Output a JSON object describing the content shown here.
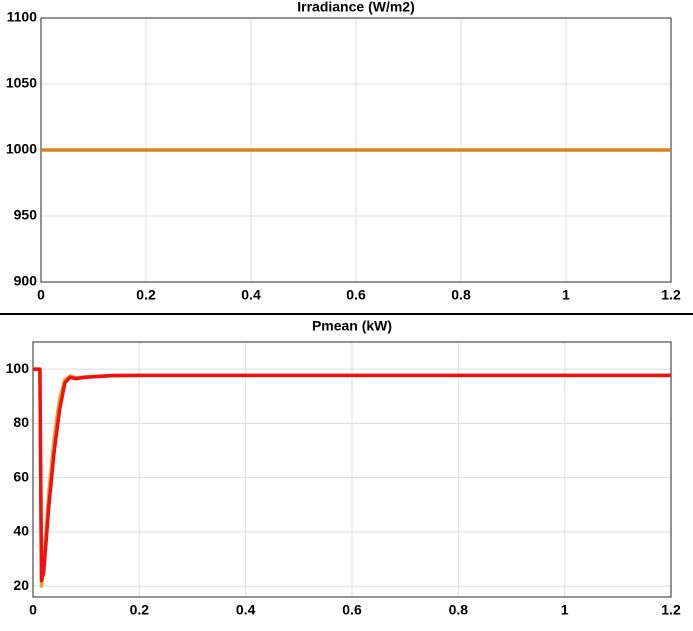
{
  "chart_data": [
    {
      "type": "line",
      "title": "Irradiance (W/m2)",
      "x": [
        0,
        1.2
      ],
      "series": [
        {
          "color": "#d9831f",
          "values": [
            1000,
            1000
          ]
        }
      ],
      "xlim": [
        0,
        1.2
      ],
      "xticks": [
        0,
        0.2,
        0.4,
        0.6,
        0.8,
        1,
        1.2
      ],
      "ylim": [
        900,
        1100
      ],
      "yticks": [
        900,
        950,
        1000,
        1050,
        1100
      ],
      "grid": true
    },
    {
      "type": "line",
      "title": "Pmean (kW)",
      "x": [
        0,
        0.013,
        0.016,
        0.02,
        0.03,
        0.04,
        0.05,
        0.06,
        0.07,
        0.08,
        0.1,
        0.15,
        0.2,
        1.2
      ],
      "series": [
        {
          "color": "#f0a030",
          "values": [
            100,
            100,
            20,
            28,
            55,
            75,
            89,
            96,
            97.5,
            96.8,
            97.2,
            97.7,
            97.7,
            97.7
          ]
        },
        {
          "color": "#ee1111",
          "values": [
            100,
            100,
            22,
            25,
            50,
            70,
            85,
            95,
            97,
            96.5,
            97,
            97.6,
            97.7,
            97.7
          ]
        }
      ],
      "xlim": [
        0,
        1.2
      ],
      "xticks": [
        0,
        0.2,
        0.4,
        0.6,
        0.8,
        1,
        1.2
      ],
      "ylim": [
        16,
        110
      ],
      "yticks": [
        20,
        40,
        60,
        80,
        100
      ],
      "grid": true
    }
  ]
}
